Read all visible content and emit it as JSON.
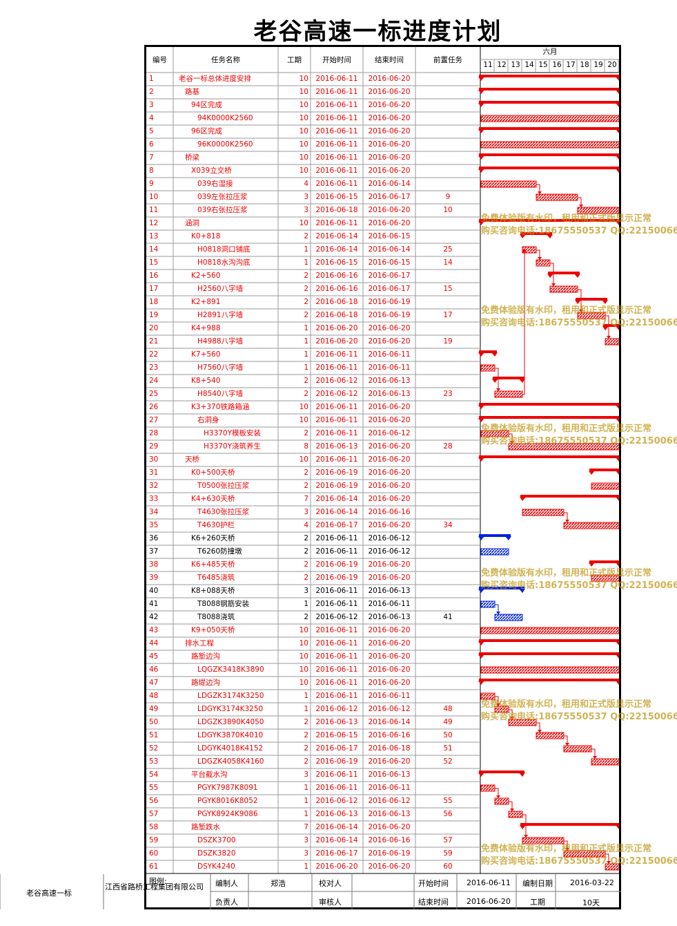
{
  "title": "老谷高速一标进度计划",
  "headers": {
    "id": "编号",
    "name": "任务名称",
    "duration": "工期",
    "start": "开始时间",
    "end": "结束时间",
    "pred": "前置任务",
    "month": "六月"
  },
  "days": [
    "11",
    "12",
    "13",
    "14",
    "15",
    "16",
    "17",
    "18",
    "19",
    "20"
  ],
  "tasks": [
    {
      "id": "1",
      "name": "老谷一标总体进度安排",
      "level": 0,
      "dur": "10",
      "start": "2016-06-11",
      "end": "2016-06-20",
      "pred": "",
      "s": 11,
      "e": 20,
      "type": "summary",
      "color": "red"
    },
    {
      "id": "2",
      "name": "路基",
      "level": 1,
      "dur": "10",
      "start": "2016-06-11",
      "end": "2016-06-20",
      "pred": "",
      "s": 11,
      "e": 20,
      "type": "summary",
      "color": "red"
    },
    {
      "id": "3",
      "name": "94区完成",
      "level": 2,
      "dur": "10",
      "start": "2016-06-11",
      "end": "2016-06-20",
      "pred": "",
      "s": 11,
      "e": 20,
      "type": "summary",
      "color": "red"
    },
    {
      "id": "4",
      "name": "94K0000K2560",
      "level": 3,
      "dur": "10",
      "start": "2016-06-11",
      "end": "2016-06-20",
      "pred": "",
      "s": 11,
      "e": 20,
      "type": "task",
      "color": "red"
    },
    {
      "id": "5",
      "name": "96区完成",
      "level": 2,
      "dur": "10",
      "start": "2016-06-11",
      "end": "2016-06-20",
      "pred": "",
      "s": 11,
      "e": 20,
      "type": "summary",
      "color": "red"
    },
    {
      "id": "6",
      "name": "96K0000K2560",
      "level": 3,
      "dur": "10",
      "start": "2016-06-11",
      "end": "2016-06-20",
      "pred": "",
      "s": 11,
      "e": 20,
      "type": "task",
      "color": "red"
    },
    {
      "id": "7",
      "name": "桥梁",
      "level": 1,
      "dur": "10",
      "start": "2016-06-11",
      "end": "2016-06-20",
      "pred": "",
      "s": 11,
      "e": 20,
      "type": "summary",
      "color": "red"
    },
    {
      "id": "8",
      "name": "X039立交桥",
      "level": 2,
      "dur": "10",
      "start": "2016-06-11",
      "end": "2016-06-20",
      "pred": "",
      "s": 11,
      "e": 20,
      "type": "summary",
      "color": "red"
    },
    {
      "id": "9",
      "name": "039右湿接",
      "level": 3,
      "dur": "4",
      "start": "2016-06-11",
      "end": "2016-06-14",
      "pred": "",
      "s": 11,
      "e": 14,
      "type": "task",
      "color": "red"
    },
    {
      "id": "10",
      "name": "039左张拉压浆",
      "level": 3,
      "dur": "3",
      "start": "2016-06-15",
      "end": "2016-06-17",
      "pred": "9",
      "s": 15,
      "e": 17,
      "type": "task",
      "color": "red"
    },
    {
      "id": "11",
      "name": "039右张拉压浆",
      "level": 3,
      "dur": "3",
      "start": "2016-06-18",
      "end": "2016-06-20",
      "pred": "10",
      "s": 18,
      "e": 20,
      "type": "task",
      "color": "red"
    },
    {
      "id": "12",
      "name": "涵洞",
      "level": 1,
      "dur": "10",
      "start": "2016-06-11",
      "end": "2016-06-20",
      "pred": "",
      "s": 11,
      "e": 20,
      "type": "summary",
      "color": "red"
    },
    {
      "id": "13",
      "name": "K0+818",
      "level": 2,
      "dur": "2",
      "start": "2016-06-14",
      "end": "2016-06-15",
      "pred": "",
      "s": 14,
      "e": 15,
      "type": "summary",
      "color": "red"
    },
    {
      "id": "14",
      "name": "H0818洞口铺底",
      "level": 3,
      "dur": "1",
      "start": "2016-06-14",
      "end": "2016-06-14",
      "pred": "25",
      "s": 14,
      "e": 14,
      "type": "task",
      "color": "red"
    },
    {
      "id": "15",
      "name": "H0818水沟沟底",
      "level": 3,
      "dur": "1",
      "start": "2016-06-15",
      "end": "2016-06-15",
      "pred": "14",
      "s": 15,
      "e": 15,
      "type": "task",
      "color": "red"
    },
    {
      "id": "16",
      "name": "K2+560",
      "level": 2,
      "dur": "2",
      "start": "2016-06-16",
      "end": "2016-06-17",
      "pred": "",
      "s": 16,
      "e": 17,
      "type": "summary",
      "color": "red"
    },
    {
      "id": "17",
      "name": "H2560八字墙",
      "level": 3,
      "dur": "2",
      "start": "2016-06-16",
      "end": "2016-06-17",
      "pred": "15",
      "s": 16,
      "e": 17,
      "type": "task",
      "color": "red"
    },
    {
      "id": "18",
      "name": "K2+891",
      "level": 2,
      "dur": "2",
      "start": "2016-06-18",
      "end": "2016-06-19",
      "pred": "",
      "s": 18,
      "e": 19,
      "type": "summary",
      "color": "red"
    },
    {
      "id": "19",
      "name": "H2891八字墙",
      "level": 3,
      "dur": "2",
      "start": "2016-06-18",
      "end": "2016-06-19",
      "pred": "17",
      "s": 18,
      "e": 19,
      "type": "task",
      "color": "red"
    },
    {
      "id": "20",
      "name": "K4+988",
      "level": 2,
      "dur": "1",
      "start": "2016-06-20",
      "end": "2016-06-20",
      "pred": "",
      "s": 20,
      "e": 20,
      "type": "summary",
      "color": "red"
    },
    {
      "id": "21",
      "name": "H4988八字墙",
      "level": 3,
      "dur": "1",
      "start": "2016-06-20",
      "end": "2016-06-20",
      "pred": "19",
      "s": 20,
      "e": 20,
      "type": "task",
      "color": "red"
    },
    {
      "id": "22",
      "name": "K7+560",
      "level": 2,
      "dur": "1",
      "start": "2016-06-11",
      "end": "2016-06-11",
      "pred": "",
      "s": 11,
      "e": 11,
      "type": "summary",
      "color": "red"
    },
    {
      "id": "23",
      "name": "H7560八字墙",
      "level": 3,
      "dur": "1",
      "start": "2016-06-11",
      "end": "2016-06-11",
      "pred": "",
      "s": 11,
      "e": 11,
      "type": "task",
      "color": "red"
    },
    {
      "id": "24",
      "name": "K8+540",
      "level": 2,
      "dur": "2",
      "start": "2016-06-12",
      "end": "2016-06-13",
      "pred": "",
      "s": 12,
      "e": 13,
      "type": "summary",
      "color": "red"
    },
    {
      "id": "25",
      "name": "H8540八字墙",
      "level": 3,
      "dur": "2",
      "start": "2016-06-12",
      "end": "2016-06-13",
      "pred": "23",
      "s": 12,
      "e": 13,
      "type": "task",
      "color": "red"
    },
    {
      "id": "26",
      "name": "K3+370铁路箱涵",
      "level": 2,
      "dur": "10",
      "start": "2016-06-11",
      "end": "2016-06-20",
      "pred": "",
      "s": 11,
      "e": 20,
      "type": "summary",
      "color": "red"
    },
    {
      "id": "27",
      "name": "右洞身",
      "level": 3,
      "dur": "10",
      "start": "2016-06-11",
      "end": "2016-06-20",
      "pred": "",
      "s": 11,
      "e": 20,
      "type": "summary",
      "color": "red"
    },
    {
      "id": "28",
      "name": "H3370Y模板安装",
      "level": 4,
      "dur": "2",
      "start": "2016-06-11",
      "end": "2016-06-12",
      "pred": "",
      "s": 11,
      "e": 12,
      "type": "task",
      "color": "red"
    },
    {
      "id": "29",
      "name": "H3370Y浇筑养生",
      "level": 4,
      "dur": "8",
      "start": "2016-06-13",
      "end": "2016-06-20",
      "pred": "28",
      "s": 13,
      "e": 20,
      "type": "task",
      "color": "red"
    },
    {
      "id": "30",
      "name": "天桥",
      "level": 1,
      "dur": "10",
      "start": "2016-06-11",
      "end": "2016-06-20",
      "pred": "",
      "s": 11,
      "e": 20,
      "type": "summary",
      "color": "red"
    },
    {
      "id": "31",
      "name": "K0+500天桥",
      "level": 2,
      "dur": "2",
      "start": "2016-06-19",
      "end": "2016-06-20",
      "pred": "",
      "s": 19,
      "e": 20,
      "type": "summary",
      "color": "red"
    },
    {
      "id": "32",
      "name": "T0500张拉压浆",
      "level": 3,
      "dur": "2",
      "start": "2016-06-19",
      "end": "2016-06-20",
      "pred": "",
      "s": 19,
      "e": 20,
      "type": "task",
      "color": "red"
    },
    {
      "id": "33",
      "name": "K4+630天桥",
      "level": 2,
      "dur": "7",
      "start": "2016-06-14",
      "end": "2016-06-20",
      "pred": "",
      "s": 14,
      "e": 20,
      "type": "summary",
      "color": "red"
    },
    {
      "id": "34",
      "name": "T4630张拉压浆",
      "level": 3,
      "dur": "3",
      "start": "2016-06-14",
      "end": "2016-06-16",
      "pred": "",
      "s": 14,
      "e": 16,
      "type": "task",
      "color": "red"
    },
    {
      "id": "35",
      "name": "T4630护栏",
      "level": 3,
      "dur": "4",
      "start": "2016-06-17",
      "end": "2016-06-20",
      "pred": "34",
      "s": 17,
      "e": 20,
      "type": "task",
      "color": "red"
    },
    {
      "id": "36",
      "name": "K6+260天桥",
      "level": 2,
      "dur": "2",
      "start": "2016-06-11",
      "end": "2016-06-12",
      "pred": "",
      "s": 11,
      "e": 12,
      "type": "summary",
      "color": "blue"
    },
    {
      "id": "37",
      "name": "T6260防撞墩",
      "level": 3,
      "dur": "2",
      "start": "2016-06-11",
      "end": "2016-06-12",
      "pred": "",
      "s": 11,
      "e": 12,
      "type": "task",
      "color": "blue"
    },
    {
      "id": "38",
      "name": "K6+485天桥",
      "level": 2,
      "dur": "2",
      "start": "2016-06-19",
      "end": "2016-06-20",
      "pred": "",
      "s": 19,
      "e": 20,
      "type": "summary",
      "color": "red"
    },
    {
      "id": "39",
      "name": "T6485浇筑",
      "level": 3,
      "dur": "2",
      "start": "2016-06-19",
      "end": "2016-06-20",
      "pred": "",
      "s": 19,
      "e": 20,
      "type": "task",
      "color": "red"
    },
    {
      "id": "40",
      "name": "K8+088天桥",
      "level": 2,
      "dur": "3",
      "start": "2016-06-11",
      "end": "2016-06-13",
      "pred": "",
      "s": 11,
      "e": 13,
      "type": "summary",
      "color": "blue"
    },
    {
      "id": "41",
      "name": "T8088钢筋安装",
      "level": 3,
      "dur": "1",
      "start": "2016-06-11",
      "end": "2016-06-11",
      "pred": "",
      "s": 11,
      "e": 11,
      "type": "task",
      "color": "blue"
    },
    {
      "id": "42",
      "name": "T8088浇筑",
      "level": 3,
      "dur": "2",
      "start": "2016-06-12",
      "end": "2016-06-13",
      "pred": "41",
      "s": 12,
      "e": 13,
      "type": "task",
      "color": "blue"
    },
    {
      "id": "43",
      "name": "K9+050天桥",
      "level": 2,
      "dur": "10",
      "start": "2016-06-11",
      "end": "2016-06-20",
      "pred": "",
      "s": 11,
      "e": 20,
      "type": "task",
      "color": "red"
    },
    {
      "id": "44",
      "name": "排水工程",
      "level": 1,
      "dur": "10",
      "start": "2016-06-11",
      "end": "2016-06-20",
      "pred": "",
      "s": 11,
      "e": 20,
      "type": "summary",
      "color": "red"
    },
    {
      "id": "45",
      "name": "路堑边沟",
      "level": 2,
      "dur": "10",
      "start": "2016-06-11",
      "end": "2016-06-20",
      "pred": "",
      "s": 11,
      "e": 20,
      "type": "summary",
      "color": "red"
    },
    {
      "id": "46",
      "name": "LQGZK3418K3890",
      "level": 3,
      "dur": "10",
      "start": "2016-06-11",
      "end": "2016-06-20",
      "pred": "",
      "s": 11,
      "e": 20,
      "type": "task",
      "color": "red"
    },
    {
      "id": "47",
      "name": "路堤边沟",
      "level": 2,
      "dur": "10",
      "start": "2016-06-11",
      "end": "2016-06-20",
      "pred": "",
      "s": 11,
      "e": 20,
      "type": "summary",
      "color": "red"
    },
    {
      "id": "48",
      "name": "LDGZK3174K3250",
      "level": 3,
      "dur": "1",
      "start": "2016-06-11",
      "end": "2016-06-11",
      "pred": "",
      "s": 11,
      "e": 11,
      "type": "task",
      "color": "red"
    },
    {
      "id": "49",
      "name": "LDGYK3174K3250",
      "level": 3,
      "dur": "1",
      "start": "2016-06-12",
      "end": "2016-06-12",
      "pred": "48",
      "s": 12,
      "e": 12,
      "type": "task",
      "color": "red"
    },
    {
      "id": "50",
      "name": "LDGZK3890K4050",
      "level": 3,
      "dur": "2",
      "start": "2016-06-13",
      "end": "2016-06-14",
      "pred": "49",
      "s": 13,
      "e": 14,
      "type": "task",
      "color": "red"
    },
    {
      "id": "51",
      "name": "LDGYK3870K4010",
      "level": 3,
      "dur": "2",
      "start": "2016-06-15",
      "end": "2016-06-16",
      "pred": "50",
      "s": 15,
      "e": 16,
      "type": "task",
      "color": "red"
    },
    {
      "id": "52",
      "name": "LDGYK4018K4152",
      "level": 3,
      "dur": "2",
      "start": "2016-06-17",
      "end": "2016-06-18",
      "pred": "51",
      "s": 17,
      "e": 18,
      "type": "task",
      "color": "red"
    },
    {
      "id": "53",
      "name": "LDGZK4058K4160",
      "level": 3,
      "dur": "2",
      "start": "2016-06-19",
      "end": "2016-06-20",
      "pred": "52",
      "s": 19,
      "e": 20,
      "type": "task",
      "color": "red"
    },
    {
      "id": "54",
      "name": "平台截水沟",
      "level": 2,
      "dur": "3",
      "start": "2016-06-11",
      "end": "2016-06-13",
      "pred": "",
      "s": 11,
      "e": 13,
      "type": "summary",
      "color": "red"
    },
    {
      "id": "55",
      "name": "PGYK7987K8091",
      "level": 3,
      "dur": "1",
      "start": "2016-06-11",
      "end": "2016-06-11",
      "pred": "",
      "s": 11,
      "e": 11,
      "type": "task",
      "color": "red"
    },
    {
      "id": "56",
      "name": "PGYK8016K8052",
      "level": 3,
      "dur": "1",
      "start": "2016-06-12",
      "end": "2016-06-12",
      "pred": "55",
      "s": 12,
      "e": 12,
      "type": "task",
      "color": "red"
    },
    {
      "id": "57",
      "name": "PGYK8924K9086",
      "level": 3,
      "dur": "1",
      "start": "2016-06-13",
      "end": "2016-06-13",
      "pred": "56",
      "s": 13,
      "e": 13,
      "type": "task",
      "color": "red"
    },
    {
      "id": "58",
      "name": "路堑跌水",
      "level": 2,
      "dur": "7",
      "start": "2016-06-14",
      "end": "2016-06-20",
      "pred": "",
      "s": 14,
      "e": 20,
      "type": "summary",
      "color": "red"
    },
    {
      "id": "59",
      "name": "DSZK3700",
      "level": 3,
      "dur": "3",
      "start": "2016-06-14",
      "end": "2016-06-16",
      "pred": "57",
      "s": 14,
      "e": 16,
      "type": "task",
      "color": "red"
    },
    {
      "id": "60",
      "name": "DSZK3820",
      "level": 3,
      "dur": "3",
      "start": "2016-06-17",
      "end": "2016-06-19",
      "pred": "59",
      "s": 17,
      "e": 19,
      "type": "task",
      "color": "red"
    },
    {
      "id": "61",
      "name": "DSYK4240",
      "level": 3,
      "dur": "1",
      "start": "2016-06-20",
      "end": "2016-06-20",
      "pred": "60",
      "s": 20,
      "e": 20,
      "type": "task",
      "color": "red"
    }
  ],
  "watermark": {
    "line1": "免费体验版有水印，租用和正式版显示正常",
    "line2": "购买咨询电话:18675550537 QQ:22150066"
  },
  "footer": {
    "project": "老谷高速一标",
    "legend_label": "图例:",
    "company": "江西省路桥工程集团有限公司",
    "editor_label": "编制人",
    "editor": "郑浩",
    "checker_label": "校对人",
    "checker": "",
    "owner_label": "负责人",
    "owner": "",
    "reviewer_label": "审核人",
    "reviewer": "",
    "start_label": "开始时间",
    "start": "2016-06-11",
    "end_label": "结束时间",
    "end": "2016-06-20",
    "date_label": "编制日期",
    "date": "2016-03-22",
    "duration_label": "工期",
    "duration": "10天"
  },
  "colors": {
    "red": "#ee0000",
    "blue": "#0022dd",
    "grid": "#999999",
    "watermark": "#c8a020"
  }
}
